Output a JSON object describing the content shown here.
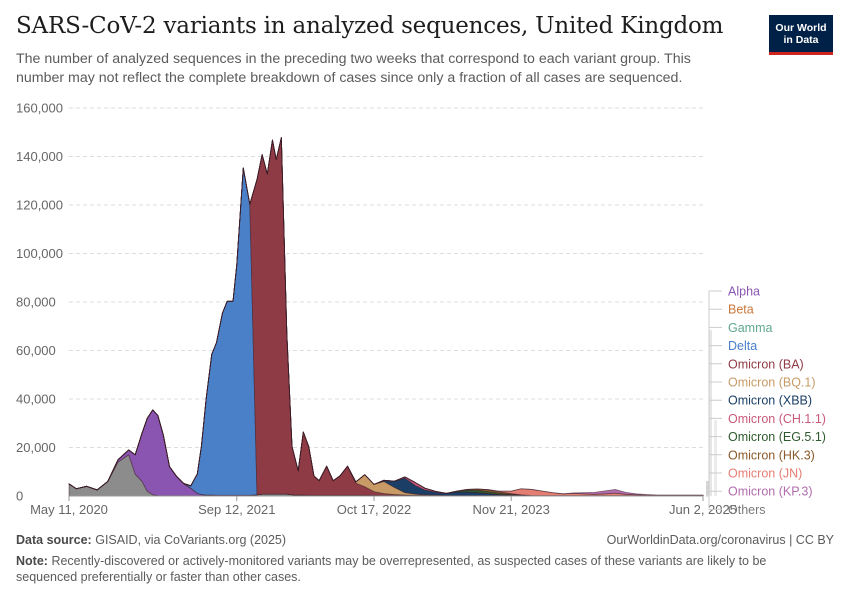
{
  "header": {
    "title": "SARS-CoV-2 variants in analyzed sequences, United Kingdom",
    "subtitle": "The number of analyzed sequences in the preceding two weeks that correspond to each variant group. This number may not reflect the complete breakdown of cases since only a fraction of all cases are sequenced.",
    "logo_line1": "Our World",
    "logo_line2": "in Data"
  },
  "footer": {
    "source_label": "Data source:",
    "source_text": "GISAID, via CoVariants.org (2025)",
    "credit": "OurWorldinData.org/coronavirus | CC BY",
    "note_label": "Note:",
    "note_text": "Recently-discovered or actively-monitored variants may be overrepresented, as suspected cases of these variants are likely to be sequenced preferentially or faster than other cases."
  },
  "colors": {
    "others": "#8c8c8c",
    "alpha": "#8a55b0",
    "beta": "#c8773b",
    "gamma": "#5fa88f",
    "delta": "#4a80c8",
    "omicron_ba": "#8f3b45",
    "omicron_bq1": "#c79a66",
    "omicron_xbb": "#1a3e66",
    "omicron_ch11": "#c9597a",
    "omicron_eg51": "#2f5a2e",
    "omicron_hk3": "#8a5a2b",
    "omicron_jn": "#e57e72",
    "omicron_kp3": "#b06dab"
  },
  "chart_data": {
    "type": "area",
    "stacked": true,
    "title": "SARS-CoV-2 variants in analyzed sequences, United Kingdom",
    "ylim": [
      0,
      160000
    ],
    "y_ticks": [
      0,
      20000,
      40000,
      60000,
      80000,
      100000,
      120000,
      140000,
      160000
    ],
    "y_tick_labels": [
      "0",
      "20,000",
      "40,000",
      "60,000",
      "80,000",
      "100,000",
      "120,000",
      "140,000",
      "160,000"
    ],
    "x_tick_labels": [
      "May 11, 2020",
      "Sep 12, 2021",
      "Oct 17, 2022",
      "Nov 21, 2023",
      "Jun 2, 2025"
    ],
    "grid": "horizontal-dashed",
    "legend_position": "right",
    "x": [
      "2020-05-11",
      "2020-06-01",
      "2020-07-01",
      "2020-08-01",
      "2020-09-01",
      "2020-10-01",
      "2020-11-01",
      "2020-11-20",
      "2020-12-10",
      "2020-12-25",
      "2021-01-10",
      "2021-01-25",
      "2021-02-10",
      "2021-02-28",
      "2021-03-20",
      "2021-04-10",
      "2021-05-01",
      "2021-05-20",
      "2021-06-01",
      "2021-06-15",
      "2021-07-01",
      "2021-07-15",
      "2021-08-01",
      "2021-08-15",
      "2021-09-01",
      "2021-09-12",
      "2021-10-01",
      "2021-10-20",
      "2021-11-10",
      "2021-11-25",
      "2021-12-10",
      "2021-12-25",
      "2022-01-05",
      "2022-01-20",
      "2022-02-05",
      "2022-02-20",
      "2022-03-10",
      "2022-03-25",
      "2022-04-10",
      "2022-04-25",
      "2022-05-10",
      "2022-06-01",
      "2022-06-20",
      "2022-07-10",
      "2022-08-01",
      "2022-08-25",
      "2022-09-20",
      "2022-10-17",
      "2022-11-15",
      "2022-12-15",
      "2023-01-15",
      "2023-02-15",
      "2023-03-15",
      "2023-04-15",
      "2023-05-15",
      "2023-06-15",
      "2023-07-15",
      "2023-08-15",
      "2023-09-15",
      "2023-10-15",
      "2023-11-21",
      "2023-12-20",
      "2024-01-20",
      "2024-02-20",
      "2024-03-20",
      "2024-04-20",
      "2024-05-20",
      "2024-06-20",
      "2024-07-20",
      "2024-08-20",
      "2024-09-20",
      "2024-10-20",
      "2024-11-20",
      "2024-12-20",
      "2025-01-20",
      "2025-02-20",
      "2025-03-20",
      "2025-04-20",
      "2025-06-02"
    ],
    "series": [
      {
        "name": "Others",
        "color_key": "others",
        "values": [
          5000,
          3000,
          4000,
          2500,
          6000,
          14000,
          17000,
          9000,
          6000,
          2000,
          500,
          200,
          100,
          100,
          100,
          100,
          100,
          100,
          100,
          200,
          300,
          300,
          300,
          300,
          300,
          300,
          300,
          300,
          500,
          800,
          800,
          800,
          800,
          800,
          800,
          500,
          400,
          400,
          300,
          300,
          300,
          300,
          300,
          300,
          300,
          300,
          300,
          300,
          200,
          200,
          200,
          200,
          200,
          200,
          200,
          200,
          200,
          200,
          200,
          200,
          200,
          200,
          200,
          200,
          200,
          200,
          200,
          200,
          200,
          200,
          200,
          200,
          200,
          200,
          200,
          200,
          200,
          200,
          200
        ]
      },
      {
        "name": "Alpha",
        "color_key": "alpha",
        "values": [
          0,
          0,
          0,
          0,
          0,
          1000,
          2000,
          8000,
          20000,
          30000,
          35000,
          33000,
          25000,
          12000,
          8000,
          5000,
          3000,
          1000,
          500,
          200,
          100,
          0,
          0,
          0,
          0,
          0,
          0,
          0,
          0,
          0,
          0,
          0,
          0,
          0,
          0,
          0,
          0,
          0,
          0,
          0,
          0,
          0,
          0,
          0,
          0,
          0,
          0,
          0,
          0,
          0,
          0,
          0,
          0,
          0,
          0,
          0,
          0,
          0,
          0,
          0,
          0,
          0,
          0,
          0,
          0,
          0,
          0,
          0,
          0,
          0,
          0,
          0,
          0,
          0,
          0,
          0,
          0,
          0,
          0
        ]
      },
      {
        "name": "Beta",
        "color_key": "beta",
        "values": [
          0,
          0,
          0,
          0,
          0,
          0,
          0,
          0,
          0,
          0,
          0,
          0,
          0,
          0,
          100,
          100,
          100,
          0,
          0,
          0,
          0,
          0,
          0,
          0,
          0,
          0,
          0,
          0,
          0,
          0,
          0,
          0,
          0,
          0,
          0,
          0,
          0,
          0,
          0,
          0,
          0,
          0,
          0,
          0,
          0,
          0,
          0,
          0,
          0,
          0,
          0,
          0,
          0,
          0,
          0,
          0,
          0,
          0,
          0,
          0,
          0,
          0,
          0,
          0,
          0,
          0,
          0,
          0,
          0,
          0,
          0,
          0,
          0,
          0,
          0,
          0,
          0,
          0,
          0
        ]
      },
      {
        "name": "Gamma",
        "color_key": "gamma",
        "values": [
          0,
          0,
          0,
          0,
          0,
          0,
          0,
          0,
          0,
          0,
          0,
          0,
          0,
          0,
          0,
          0,
          0,
          0,
          0,
          0,
          0,
          0,
          0,
          0,
          0,
          0,
          0,
          0,
          0,
          0,
          0,
          0,
          0,
          0,
          0,
          0,
          0,
          0,
          0,
          0,
          0,
          0,
          0,
          0,
          0,
          0,
          0,
          0,
          0,
          0,
          0,
          0,
          0,
          0,
          0,
          0,
          0,
          0,
          0,
          0,
          0,
          0,
          0,
          0,
          0,
          0,
          0,
          0,
          0,
          0,
          0,
          0,
          0,
          0,
          0,
          0,
          0,
          0,
          0
        ]
      },
      {
        "name": "Delta",
        "color_key": "delta",
        "values": [
          0,
          0,
          0,
          0,
          0,
          0,
          0,
          0,
          0,
          0,
          0,
          0,
          0,
          0,
          0,
          0,
          1000,
          8000,
          20000,
          40000,
          58000,
          63000,
          75000,
          80000,
          80000,
          95000,
          135000,
          120000,
          0,
          0,
          0,
          0,
          0,
          0,
          0,
          0,
          0,
          0,
          0,
          0,
          0,
          0,
          0,
          0,
          0,
          0,
          0,
          0,
          0,
          0,
          0,
          0,
          0,
          0,
          0,
          0,
          0,
          0,
          0,
          0,
          0,
          0,
          0,
          0,
          0,
          0,
          0,
          0,
          0,
          0,
          0,
          0,
          0,
          0,
          0,
          0,
          0,
          0,
          0
        ]
      },
      {
        "name": "Omicron (BA)",
        "color_key": "omicron_ba",
        "values": [
          0,
          0,
          0,
          0,
          0,
          0,
          0,
          0,
          0,
          0,
          0,
          0,
          0,
          0,
          0,
          0,
          0,
          0,
          0,
          0,
          0,
          0,
          0,
          0,
          0,
          0,
          0,
          0,
          130000,
          140000,
          132000,
          146000,
          138000,
          147000,
          66000,
          20000,
          10000,
          26000,
          20000,
          8000,
          6000,
          12000,
          6000,
          8000,
          12000,
          5000,
          3500,
          1500,
          800,
          400,
          200,
          100,
          100,
          100,
          0,
          0,
          0,
          0,
          0,
          0,
          0,
          0,
          0,
          0,
          0,
          0,
          0,
          0,
          0,
          0,
          0,
          0,
          0,
          0,
          0,
          0,
          0,
          0,
          0
        ]
      },
      {
        "name": "Omicron (BQ.1)",
        "color_key": "omicron_bq1",
        "values": [
          0,
          0,
          0,
          0,
          0,
          0,
          0,
          0,
          0,
          0,
          0,
          0,
          0,
          0,
          0,
          0,
          0,
          0,
          0,
          0,
          0,
          0,
          0,
          0,
          0,
          0,
          0,
          0,
          0,
          0,
          0,
          0,
          0,
          0,
          0,
          0,
          0,
          0,
          0,
          0,
          0,
          0,
          0,
          0,
          0,
          500,
          5000,
          3000,
          5000,
          3000,
          1000,
          500,
          200,
          100,
          0,
          0,
          0,
          0,
          0,
          0,
          0,
          0,
          0,
          0,
          0,
          0,
          0,
          0,
          0,
          0,
          0,
          0,
          0,
          0,
          0,
          0,
          0,
          0,
          0
        ]
      },
      {
        "name": "Omicron (XBB)",
        "color_key": "omicron_xbb",
        "values": [
          0,
          0,
          0,
          0,
          0,
          0,
          0,
          0,
          0,
          0,
          0,
          0,
          0,
          0,
          0,
          0,
          0,
          0,
          0,
          0,
          0,
          0,
          0,
          0,
          0,
          0,
          0,
          0,
          0,
          0,
          0,
          0,
          0,
          0,
          0,
          0,
          0,
          0,
          0,
          0,
          0,
          0,
          0,
          0,
          0,
          0,
          0,
          0,
          500,
          2500,
          6000,
          3500,
          2000,
          1200,
          800,
          1500,
          1500,
          1200,
          800,
          400,
          200,
          100,
          0,
          0,
          0,
          0,
          0,
          0,
          0,
          0,
          0,
          0,
          0,
          0,
          0,
          0,
          0,
          0,
          0
        ]
      },
      {
        "name": "Omicron (CH.1.1)",
        "color_key": "omicron_ch11",
        "values": [
          0,
          0,
          0,
          0,
          0,
          0,
          0,
          0,
          0,
          0,
          0,
          0,
          0,
          0,
          0,
          0,
          0,
          0,
          0,
          0,
          0,
          0,
          0,
          0,
          0,
          0,
          0,
          0,
          0,
          0,
          0,
          0,
          0,
          0,
          0,
          0,
          0,
          0,
          0,
          0,
          0,
          0,
          0,
          0,
          0,
          0,
          0,
          0,
          0,
          0,
          500,
          1200,
          700,
          300,
          100,
          0,
          0,
          0,
          0,
          0,
          0,
          0,
          0,
          0,
          0,
          0,
          0,
          0,
          0,
          0,
          0,
          0,
          0,
          0,
          0,
          0,
          0,
          0,
          0
        ]
      },
      {
        "name": "Omicron (EG.5.1)",
        "color_key": "omicron_eg51",
        "values": [
          0,
          0,
          0,
          0,
          0,
          0,
          0,
          0,
          0,
          0,
          0,
          0,
          0,
          0,
          0,
          0,
          0,
          0,
          0,
          0,
          0,
          0,
          0,
          0,
          0,
          0,
          0,
          0,
          0,
          0,
          0,
          0,
          0,
          0,
          0,
          0,
          0,
          0,
          0,
          0,
          0,
          0,
          0,
          0,
          0,
          0,
          0,
          0,
          0,
          0,
          0,
          0,
          0,
          0,
          0,
          300,
          800,
          1000,
          800,
          600,
          300,
          100,
          0,
          0,
          0,
          0,
          0,
          0,
          0,
          0,
          0,
          0,
          0,
          0,
          0,
          0,
          0,
          0,
          0
        ]
      },
      {
        "name": "Omicron (HK.3)",
        "color_key": "omicron_hk3",
        "values": [
          0,
          0,
          0,
          0,
          0,
          0,
          0,
          0,
          0,
          0,
          0,
          0,
          0,
          0,
          0,
          0,
          0,
          0,
          0,
          0,
          0,
          0,
          0,
          0,
          0,
          0,
          0,
          0,
          0,
          0,
          0,
          0,
          0,
          0,
          0,
          0,
          0,
          0,
          0,
          0,
          0,
          0,
          0,
          0,
          0,
          0,
          0,
          0,
          0,
          0,
          0,
          0,
          0,
          0,
          0,
          0,
          200,
          500,
          800,
          600,
          300,
          100,
          0,
          0,
          0,
          0,
          0,
          0,
          0,
          0,
          0,
          0,
          0,
          0,
          0,
          0,
          0,
          0,
          0
        ]
      },
      {
        "name": "Omicron (JN)",
        "color_key": "omicron_jn",
        "values": [
          0,
          0,
          0,
          0,
          0,
          0,
          0,
          0,
          0,
          0,
          0,
          0,
          0,
          0,
          0,
          0,
          0,
          0,
          0,
          0,
          0,
          0,
          0,
          0,
          0,
          0,
          0,
          0,
          0,
          0,
          0,
          0,
          0,
          0,
          0,
          0,
          0,
          0,
          0,
          0,
          0,
          0,
          0,
          0,
          0,
          0,
          0,
          0,
          0,
          0,
          0,
          0,
          0,
          0,
          0,
          0,
          0,
          0,
          0,
          200,
          1000,
          2500,
          2500,
          1800,
          1200,
          700,
          900,
          700,
          500,
          700,
          1000,
          500,
          300,
          200,
          100,
          100,
          100,
          100,
          100
        ]
      },
      {
        "name": "Omicron (KP.3)",
        "color_key": "omicron_kp3",
        "values": [
          0,
          0,
          0,
          0,
          0,
          0,
          0,
          0,
          0,
          0,
          0,
          0,
          0,
          0,
          0,
          0,
          0,
          0,
          0,
          0,
          0,
          0,
          0,
          0,
          0,
          0,
          0,
          0,
          0,
          0,
          0,
          0,
          0,
          0,
          0,
          0,
          0,
          0,
          0,
          0,
          0,
          0,
          0,
          0,
          0,
          0,
          0,
          0,
          0,
          0,
          0,
          0,
          0,
          0,
          0,
          0,
          0,
          0,
          0,
          0,
          0,
          0,
          0,
          0,
          0,
          0,
          200,
          500,
          800,
          1200,
          1500,
          800,
          400,
          200,
          100,
          100,
          100,
          100,
          100
        ]
      }
    ]
  }
}
